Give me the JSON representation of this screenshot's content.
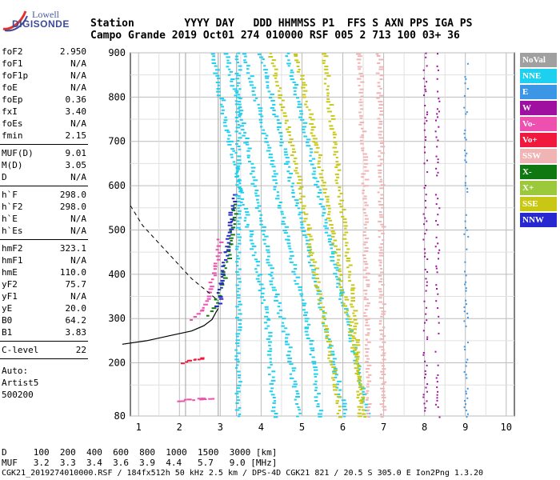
{
  "logo": {
    "line1": "Lowell",
    "line2": "DIGISONDE"
  },
  "header": {
    "row1": "Station        YYYY DAY   DDD HHMMSS P1  FFS S AXN PPS IGA PS",
    "row2": "Campo Grande 2019 Oct01 274 010000 RSF 005 2 713 100 03+ 36"
  },
  "params": {
    "group1": [
      {
        "name": "foF2",
        "value": "2.950"
      },
      {
        "name": "foF1",
        "value": "N/A"
      },
      {
        "name": "foF1p",
        "value": "N/A"
      },
      {
        "name": "foE",
        "value": "N/A"
      },
      {
        "name": "foEp",
        "value": "0.36"
      },
      {
        "name": "fxI",
        "value": "3.40"
      },
      {
        "name": "foEs",
        "value": "N/A"
      },
      {
        "name": "fmin",
        "value": "2.15"
      }
    ],
    "group2": [
      {
        "name": "MUF(D)",
        "value": "9.01"
      },
      {
        "name": "M(D)",
        "value": "3.05"
      },
      {
        "name": "D",
        "value": "N/A"
      }
    ],
    "group3": [
      {
        "name": "h`F",
        "value": "298.0"
      },
      {
        "name": "h`F2",
        "value": "298.0"
      },
      {
        "name": "h`E",
        "value": "N/A"
      },
      {
        "name": "h`Es",
        "value": "N/A"
      }
    ],
    "group4": [
      {
        "name": "hmF2",
        "value": "323.1"
      },
      {
        "name": "hmF1",
        "value": "N/A"
      },
      {
        "name": "hmE",
        "value": "110.0"
      },
      {
        "name": "yF2",
        "value": "75.7"
      },
      {
        "name": "yF1",
        "value": "N/A"
      },
      {
        "name": "yE",
        "value": "20.0"
      },
      {
        "name": "B0",
        "value": "64.2"
      },
      {
        "name": "B1",
        "value": "3.83"
      }
    ],
    "group5": [
      {
        "name": "C-level",
        "value": "22"
      }
    ],
    "auto": {
      "line1": "Auto:",
      "line2": "Artist5",
      "line3": "500200"
    }
  },
  "legend": [
    {
      "label": "NoVal",
      "color": "#a0a0a0"
    },
    {
      "label": "NNE",
      "color": "#1ed0f0"
    },
    {
      "label": "E",
      "color": "#3c96e6"
    },
    {
      "label": "W",
      "color": "#a010a0"
    },
    {
      "label": "Vo-",
      "color": "#ee50b0"
    },
    {
      "label": "Vo+",
      "color": "#f0183c"
    },
    {
      "label": "SSW",
      "color": "#f0b4b4"
    },
    {
      "label": "X-",
      "color": "#107810"
    },
    {
      "label": "X+",
      "color": "#9cc83c"
    },
    {
      "label": "SSE",
      "color": "#c8c814"
    },
    {
      "label": "NNW",
      "color": "#2828d0"
    }
  ],
  "chart_data": {
    "type": "scatter",
    "title": "",
    "xlabel": "",
    "ylabel": "",
    "xlim": [
      0.8,
      10.2
    ],
    "ylim": [
      80,
      900
    ],
    "x_ticks": [
      "1",
      "2",
      "3",
      "4",
      "5",
      "6",
      "7",
      "8",
      "9",
      "10"
    ],
    "y_ticks": [
      "80",
      "200",
      "300",
      "400",
      "500",
      "600",
      "700",
      "800",
      "900"
    ],
    "vertical_markers": [
      2.15,
      2.95,
      3.4
    ],
    "profile_curve": [
      [
        0.6,
        242
      ],
      [
        1.2,
        250
      ],
      [
        1.8,
        262
      ],
      [
        2.3,
        272
      ],
      [
        2.6,
        284
      ],
      [
        2.8,
        298
      ],
      [
        2.9,
        315
      ],
      [
        2.95,
        323
      ]
    ],
    "dashed_curve": [
      [
        0.8,
        555
      ],
      [
        1.1,
        510
      ],
      [
        1.5,
        470
      ],
      [
        1.9,
        430
      ],
      [
        2.3,
        390
      ],
      [
        2.7,
        360
      ],
      [
        2.95,
        340
      ]
    ],
    "traces": [
      {
        "mode": "O",
        "color": "#ee50b0",
        "points": [
          [
            2.3,
            300
          ],
          [
            2.5,
            320
          ],
          [
            2.7,
            360
          ],
          [
            2.85,
            420
          ],
          [
            2.95,
            480
          ]
        ]
      },
      {
        "mode": "X",
        "color": "#107810",
        "points": [
          [
            2.7,
            310
          ],
          [
            2.9,
            345
          ],
          [
            3.05,
            400
          ],
          [
            3.2,
            470
          ],
          [
            3.35,
            560
          ]
        ]
      },
      {
        "mode": "NNW",
        "color": "#2828d0",
        "points": [
          [
            2.9,
            330
          ],
          [
            3.0,
            380
          ],
          [
            3.1,
            450
          ],
          [
            3.2,
            520
          ],
          [
            3.3,
            580
          ]
        ]
      },
      {
        "mode": "Es",
        "color": "#f0183c",
        "points": [
          [
            2.0,
            200
          ],
          [
            2.2,
            205
          ],
          [
            2.4,
            210
          ],
          [
            2.55,
            212
          ]
        ]
      },
      {
        "mode": "Es2",
        "color": "#ee50b0",
        "points": [
          [
            1.9,
            115
          ],
          [
            2.2,
            118
          ],
          [
            2.5,
            120
          ],
          [
            2.75,
            122
          ]
        ]
      },
      {
        "mode": "NNE",
        "color": "#1ed0f0",
        "points": [
          [
            3.4,
            80
          ],
          [
            3.4,
            900
          ]
        ]
      },
      {
        "mode": "NNE",
        "color": "#1ed0f0",
        "points": [
          [
            2.75,
            900
          ],
          [
            3.2,
            700
          ],
          [
            3.9,
            400
          ],
          [
            4.1,
            300
          ],
          [
            4.3,
            80
          ]
        ]
      },
      {
        "mode": "NNE",
        "color": "#1ed0f0",
        "points": [
          [
            3.1,
            900
          ],
          [
            3.6,
            700
          ],
          [
            4.2,
            400
          ],
          [
            4.6,
            250
          ],
          [
            4.9,
            80
          ]
        ]
      },
      {
        "mode": "NNE",
        "color": "#1ed0f0",
        "points": [
          [
            3.55,
            900
          ],
          [
            4.1,
            700
          ],
          [
            4.6,
            480
          ],
          [
            5.1,
            280
          ],
          [
            5.4,
            80
          ]
        ]
      },
      {
        "mode": "NNE",
        "color": "#1ed0f0",
        "points": [
          [
            3.95,
            900
          ],
          [
            4.6,
            650
          ],
          [
            5.2,
            420
          ],
          [
            5.7,
            220
          ],
          [
            6.0,
            80
          ]
        ]
      },
      {
        "mode": "NNE",
        "color": "#1ed0f0",
        "points": [
          [
            4.6,
            900
          ],
          [
            5.3,
            620
          ],
          [
            5.9,
            360
          ],
          [
            6.3,
            200
          ],
          [
            6.6,
            80
          ]
        ]
      },
      {
        "mode": "SSE",
        "color": "#c8c814",
        "points": [
          [
            4.2,
            900
          ],
          [
            4.7,
            700
          ],
          [
            5.2,
            450
          ],
          [
            5.6,
            250
          ],
          [
            5.9,
            80
          ]
        ]
      },
      {
        "mode": "SSE",
        "color": "#c8c814",
        "points": [
          [
            4.8,
            900
          ],
          [
            5.3,
            700
          ],
          [
            5.9,
            400
          ],
          [
            6.3,
            200
          ],
          [
            6.5,
            80
          ]
        ]
      },
      {
        "mode": "SSE",
        "color": "#c8c814",
        "points": [
          [
            5.5,
            900
          ],
          [
            5.8,
            650
          ],
          [
            6.2,
            350
          ],
          [
            6.4,
            80
          ]
        ]
      },
      {
        "mode": "SSW",
        "color": "#f0b4b4",
        "points": [
          [
            6.35,
            900
          ],
          [
            6.5,
            600
          ],
          [
            6.55,
            300
          ],
          [
            6.6,
            80
          ]
        ]
      },
      {
        "mode": "SSW",
        "color": "#f0b4b4",
        "points": [
          [
            6.85,
            900
          ],
          [
            6.9,
            500
          ],
          [
            6.95,
            80
          ]
        ]
      },
      {
        "mode": "W",
        "color": "#a010a0",
        "points": [
          [
            8.0,
            900
          ],
          [
            8.0,
            80
          ]
        ]
      },
      {
        "mode": "W",
        "color": "#a010a0",
        "points": [
          [
            8.3,
            900
          ],
          [
            8.3,
            80
          ]
        ]
      },
      {
        "mode": "E",
        "color": "#3c96e6",
        "points": [
          [
            9.0,
            900
          ],
          [
            9.0,
            80
          ]
        ]
      }
    ]
  },
  "footer": {
    "row1": "D     100  200  400  600  800  1000  1500  3000 [km]",
    "row2": "MUF   3.2  3.3  3.4  3.6  3.9  4.4   5.7   9.0 [MHz]",
    "row3": "CGK21_2019274010000.RSF / 184fx512h 50 kHz 2.5 km / DPS-4D CGK21 821 / 20.5 S 305.0 E Ion2Png 1.3.20"
  }
}
